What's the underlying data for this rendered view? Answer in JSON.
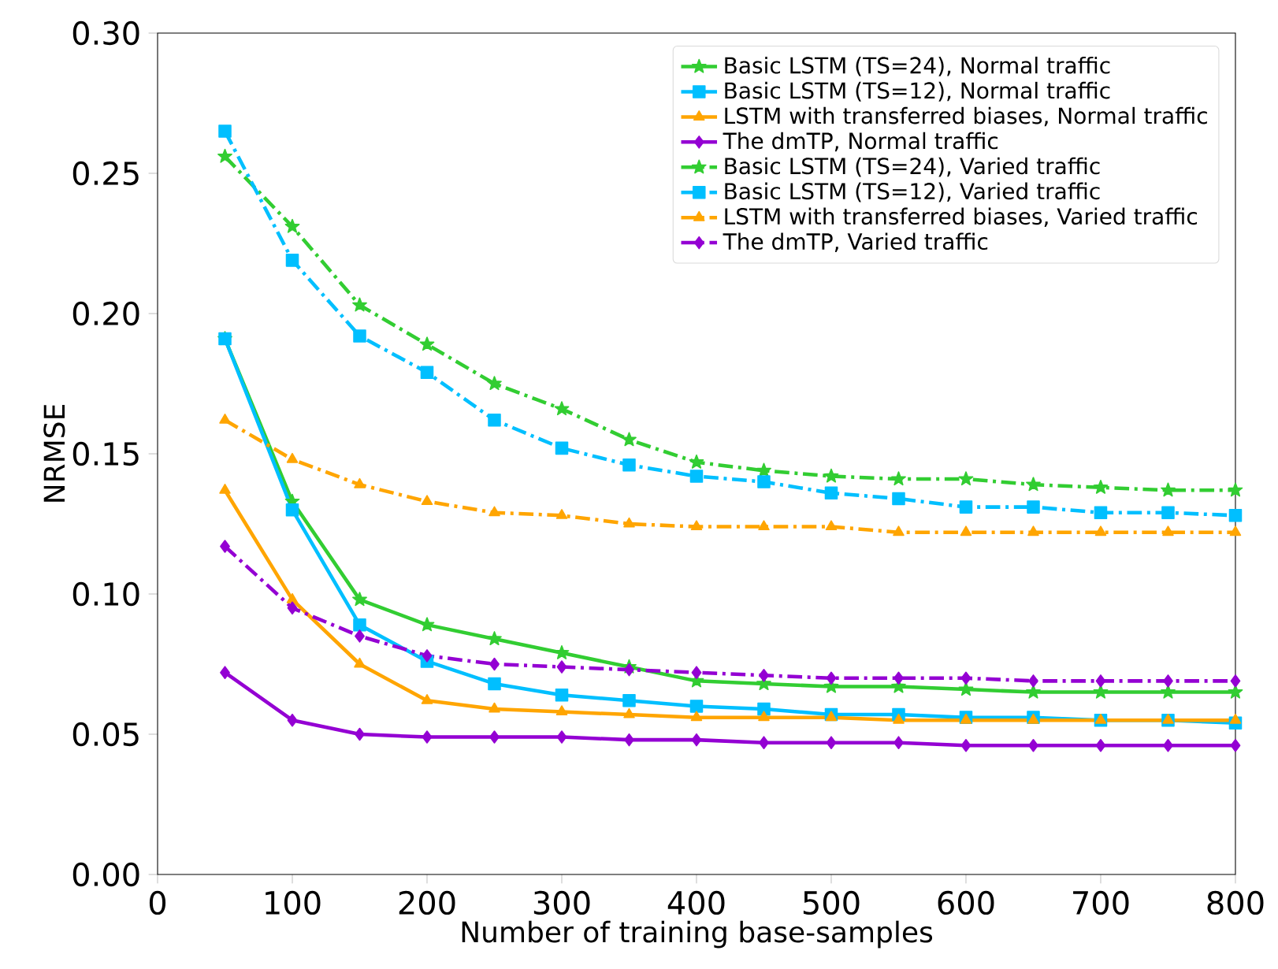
{
  "chart_data": {
    "type": "line",
    "xlabel": "Number of training base-samples",
    "ylabel": "NRMSE",
    "x": [
      50,
      100,
      150,
      200,
      250,
      300,
      350,
      400,
      450,
      500,
      550,
      600,
      650,
      700,
      750,
      800
    ],
    "xlim": [
      0,
      800
    ],
    "xticks": [
      0,
      100,
      200,
      300,
      400,
      500,
      600,
      700,
      800
    ],
    "ylim": [
      0,
      0.3
    ],
    "yticks": [
      {
        "value": 0,
        "label": "0.00"
      },
      {
        "value": 0.05,
        "label": "0.05"
      },
      {
        "value": 0.1,
        "label": "0.10"
      },
      {
        "value": 0.15,
        "label": "0.15"
      },
      {
        "value": 0.2,
        "label": "0.20"
      },
      {
        "value": 0.25,
        "label": "0.25"
      },
      {
        "value": 0.3,
        "label": "0.30"
      }
    ],
    "grid": false,
    "legend": "top right",
    "series": [
      {
        "name": "Basic LSTM (TS=24), Normal traffic",
        "color": "#32cd32",
        "marker": "star",
        "line_style": "solid",
        "values": [
          0.191,
          0.133,
          0.098,
          0.089,
          0.084,
          0.079,
          0.074,
          0.069,
          0.068,
          0.067,
          0.067,
          0.066,
          0.065,
          0.065,
          0.065,
          0.065
        ]
      },
      {
        "name": "Basic LSTM (TS=12), Normal traffic",
        "color": "#00bfff",
        "marker": "square",
        "line_style": "solid",
        "values": [
          0.191,
          0.13,
          0.089,
          0.076,
          0.068,
          0.064,
          0.062,
          0.06,
          0.059,
          0.057,
          0.057,
          0.056,
          0.056,
          0.055,
          0.055,
          0.054
        ]
      },
      {
        "name": "LSTM with transferred biases, Normal traffic",
        "color": "#ffa500",
        "marker": "triangle",
        "line_style": "solid",
        "values": [
          0.137,
          0.098,
          0.075,
          0.062,
          0.059,
          0.058,
          0.057,
          0.056,
          0.056,
          0.056,
          0.055,
          0.055,
          0.055,
          0.055,
          0.055,
          0.055
        ]
      },
      {
        "name": "The dmTP, Normal traffic",
        "color": "#9400d3",
        "marker": "diamond",
        "line_style": "solid",
        "values": [
          0.072,
          0.055,
          0.05,
          0.049,
          0.049,
          0.049,
          0.048,
          0.048,
          0.047,
          0.047,
          0.047,
          0.046,
          0.046,
          0.046,
          0.046,
          0.046
        ]
      },
      {
        "name": "Basic LSTM (TS=24), Varied traffic",
        "color": "#32cd32",
        "marker": "star",
        "line_style": "dashdot",
        "values": [
          0.256,
          0.231,
          0.203,
          0.189,
          0.175,
          0.166,
          0.155,
          0.147,
          0.144,
          0.142,
          0.141,
          0.141,
          0.139,
          0.138,
          0.137,
          0.137
        ]
      },
      {
        "name": "Basic LSTM (TS=12), Varied traffic",
        "color": "#00bfff",
        "marker": "square",
        "line_style": "dashdot",
        "values": [
          0.265,
          0.219,
          0.192,
          0.179,
          0.162,
          0.152,
          0.146,
          0.142,
          0.14,
          0.136,
          0.134,
          0.131,
          0.131,
          0.129,
          0.129,
          0.128
        ]
      },
      {
        "name": "LSTM with transferred biases, Varied traffic",
        "color": "#ffa500",
        "marker": "triangle",
        "line_style": "dashdot",
        "values": [
          0.162,
          0.148,
          0.139,
          0.133,
          0.129,
          0.128,
          0.125,
          0.124,
          0.124,
          0.124,
          0.122,
          0.122,
          0.122,
          0.122,
          0.122,
          0.122
        ]
      },
      {
        "name": "The dmTP, Varied traffic",
        "color": "#9400d3",
        "marker": "diamond",
        "line_style": "dashdot",
        "values": [
          0.117,
          0.095,
          0.085,
          0.078,
          0.075,
          0.074,
          0.073,
          0.072,
          0.071,
          0.07,
          0.07,
          0.07,
          0.069,
          0.069,
          0.069,
          0.069
        ]
      }
    ]
  }
}
